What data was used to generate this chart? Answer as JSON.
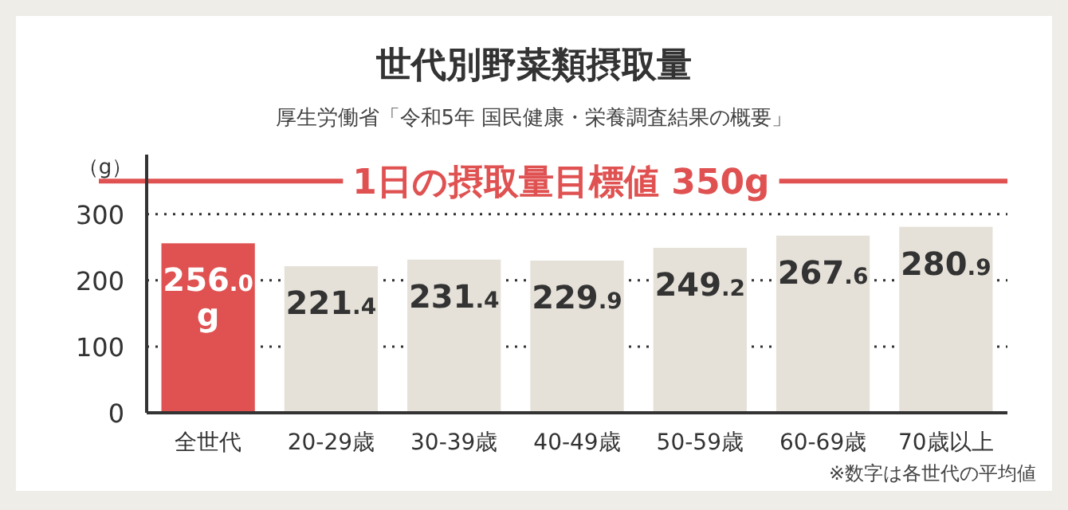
{
  "chart_data": {
    "type": "bar",
    "title": "世代別野菜類摂取量",
    "subtitle": "厚生労働省「令和5年 国民健康・栄養調査結果の概要」",
    "ylabel": "（g）",
    "categories": [
      "全世代",
      "20-29歳",
      "30-39歳",
      "40-49歳",
      "50-59歳",
      "60-69歳",
      "70歳以上"
    ],
    "values": [
      256.0,
      221.4,
      231.4,
      229.9,
      249.2,
      267.6,
      280.9
    ],
    "colors": [
      "#e05252",
      "#e5e1d8",
      "#e5e1d8",
      "#e5e1d8",
      "#e5e1d8",
      "#e5e1d8",
      "#e5e1d8"
    ],
    "value_labels": [
      "256.0 g",
      "221.4",
      "231.4",
      "229.9",
      "249.2",
      "267.6",
      "280.9"
    ],
    "ylim": [
      0,
      390
    ],
    "yticks": [
      0,
      100,
      200,
      300
    ],
    "grid": "y",
    "ref_lines": [
      {
        "axis": "y",
        "value": 350,
        "label": "1日の摂取量目標値 350g",
        "color": "#e05252"
      }
    ],
    "annotations": [
      "※数字は各世代の平均値"
    ]
  }
}
